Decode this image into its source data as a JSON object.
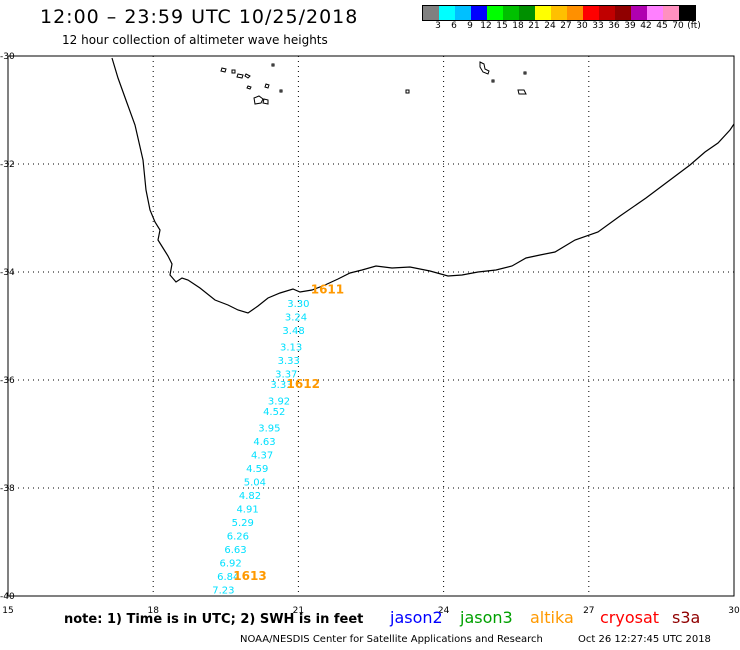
{
  "header": {
    "title": "12:00 – 23:59 UTC 10/25/2018",
    "subtitle": "12 hour collection of altimeter wave heights"
  },
  "legend": {
    "colors": [
      "#808080",
      "#00ffff",
      "#00c0ff",
      "#0000ff",
      "#00ff00",
      "#00c000",
      "#009000",
      "#ffff00",
      "#ffc000",
      "#ff9000",
      "#ff0000",
      "#c00000",
      "#900000",
      "#b000b0",
      "#ff80ff",
      "#ff90c0",
      "#000000"
    ],
    "labels": [
      "3",
      "6",
      "9",
      "12",
      "15",
      "18",
      "21",
      "24",
      "27",
      "30",
      "33",
      "36",
      "39",
      "42",
      "45",
      "70",
      "(ft)"
    ]
  },
  "axes": {
    "lat_ticks": [
      "-30",
      "-32",
      "-34",
      "-36",
      "-38",
      "-40"
    ],
    "lon_ticks": [
      "15",
      "18",
      "21",
      "24",
      "27",
      "30"
    ],
    "lon_range": [
      15,
      30
    ],
    "lat_range": [
      -30,
      -40
    ]
  },
  "track": {
    "color": "#00e0ff",
    "labels": [
      {
        "text": "3.30",
        "lon": 21.0,
        "lat": -34.65
      },
      {
        "text": "3.24",
        "lon": 20.95,
        "lat": -34.9
      },
      {
        "text": "3.48",
        "lon": 20.9,
        "lat": -35.15
      },
      {
        "text": "3.13",
        "lon": 20.85,
        "lat": -35.45
      },
      {
        "text": "3.33",
        "lon": 20.8,
        "lat": -35.7
      },
      {
        "text": "3.37",
        "lon": 20.75,
        "lat": -35.95
      },
      {
        "text": "3.33",
        "lon": 20.65,
        "lat": -36.15
      },
      {
        "text": "3.92",
        "lon": 20.6,
        "lat": -36.45
      },
      {
        "text": "4.52",
        "lon": 20.5,
        "lat": -36.65
      },
      {
        "text": "3.95",
        "lon": 20.4,
        "lat": -36.95
      },
      {
        "text": "4.63",
        "lon": 20.3,
        "lat": -37.2
      },
      {
        "text": "4.37",
        "lon": 20.25,
        "lat": -37.45
      },
      {
        "text": "4.59",
        "lon": 20.15,
        "lat": -37.7
      },
      {
        "text": "5.04",
        "lon": 20.1,
        "lat": -37.95
      },
      {
        "text": "4.82",
        "lon": 20.0,
        "lat": -38.2
      },
      {
        "text": "4.91",
        "lon": 19.95,
        "lat": -38.45
      },
      {
        "text": "5.29",
        "lon": 19.85,
        "lat": -38.7
      },
      {
        "text": "6.26",
        "lon": 19.75,
        "lat": -38.95
      },
      {
        "text": "6.63",
        "lon": 19.7,
        "lat": -39.2
      },
      {
        "text": "6.92",
        "lon": 19.6,
        "lat": -39.45
      },
      {
        "text": "6.84",
        "lon": 19.55,
        "lat": -39.7
      },
      {
        "text": "7.23",
        "lon": 19.45,
        "lat": -39.95
      }
    ],
    "times": [
      {
        "text": "1611",
        "lon": 21.6,
        "lat": -34.4
      },
      {
        "text": "1612",
        "lon": 21.1,
        "lat": -36.15
      },
      {
        "text": "1613",
        "lon": 20.0,
        "lat": -39.7
      }
    ],
    "time_color": "#ff9900"
  },
  "footer": {
    "note": "note: 1) Time is in UTC; 2) SWH is in feet",
    "credit": "NOAA/NESDIS Center for Satellite Applications and Research",
    "timestamp": "Oct 26 12:27:45 UTC 2018",
    "missions": [
      {
        "name": "jason2",
        "color": "#0000ff"
      },
      {
        "name": "jason3",
        "color": "#00a000"
      },
      {
        "name": "altika",
        "color": "#ff9900"
      },
      {
        "name": "cryosat",
        "color": "#ff0000"
      },
      {
        "name": "s3a",
        "color": "#900000"
      }
    ]
  }
}
